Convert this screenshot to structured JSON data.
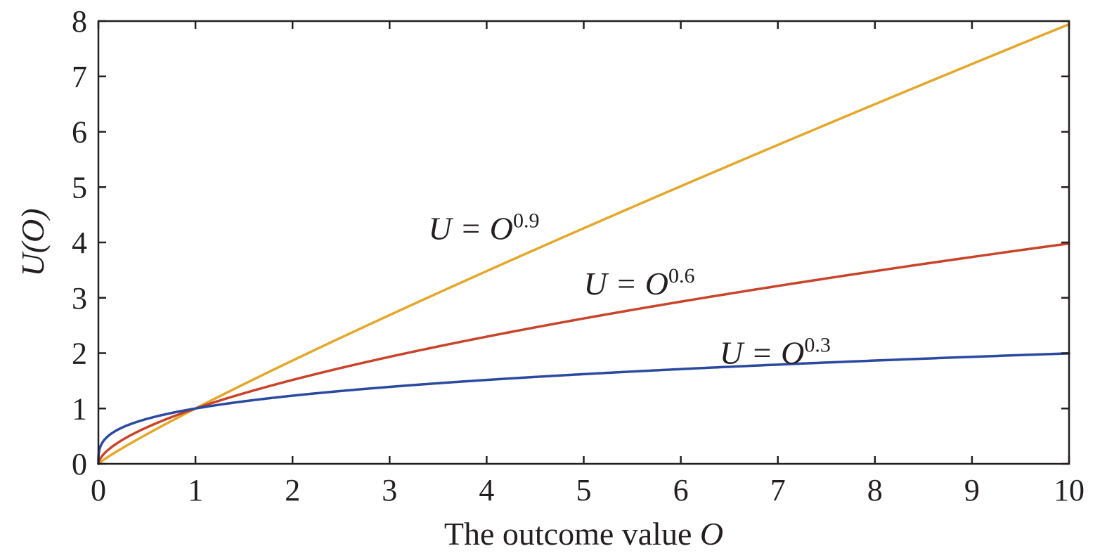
{
  "chart_data": {
    "type": "line",
    "title": "",
    "xlabel_text": "The outcome value ",
    "xlabel_var": "O",
    "ylabel": "U(O)",
    "xlim": [
      0,
      10
    ],
    "ylim": [
      0,
      8
    ],
    "xticks": [
      0,
      1,
      2,
      3,
      4,
      5,
      6,
      7,
      8,
      9,
      10
    ],
    "yticks": [
      0,
      1,
      2,
      3,
      4,
      5,
      6,
      7,
      8
    ],
    "grid": false,
    "legend": "none",
    "series": [
      {
        "formula": "U = O^0.9",
        "label_main": "U = O",
        "label_exp": "0.9",
        "exponent": 0.9,
        "color": "#e3a82b",
        "label_at": {
          "x": 3.4,
          "y": 4.25
        },
        "x": [
          0,
          0.5,
          1,
          2,
          3,
          4,
          5,
          6,
          7,
          8,
          9,
          10
        ],
        "y": [
          0,
          0.536,
          1,
          1.866,
          2.688,
          3.482,
          4.257,
          5.016,
          5.762,
          6.498,
          7.225,
          7.943
        ]
      },
      {
        "formula": "U = O^0.6",
        "label_main": "U = O",
        "label_exp": "0.6",
        "exponent": 0.6,
        "color": "#c8442a",
        "label_at": {
          "x": 5.0,
          "y": 3.25
        },
        "x": [
          0,
          0.5,
          1,
          2,
          3,
          4,
          5,
          6,
          7,
          8,
          9,
          10
        ],
        "y": [
          0,
          0.66,
          1,
          1.516,
          1.933,
          2.297,
          2.627,
          2.93,
          3.214,
          3.482,
          3.737,
          3.981
        ]
      },
      {
        "formula": "U = O^0.3",
        "label_main": "U = O",
        "label_exp": "0.3",
        "exponent": 0.3,
        "color": "#2b4a9f",
        "label_at": {
          "x": 6.4,
          "y": 2.0
        },
        "x": [
          0,
          0.5,
          1,
          2,
          3,
          4,
          5,
          6,
          7,
          8,
          9,
          10
        ],
        "y": [
          0,
          0.812,
          1,
          1.231,
          1.39,
          1.516,
          1.621,
          1.712,
          1.793,
          1.866,
          1.933,
          1.995
        ]
      }
    ]
  }
}
